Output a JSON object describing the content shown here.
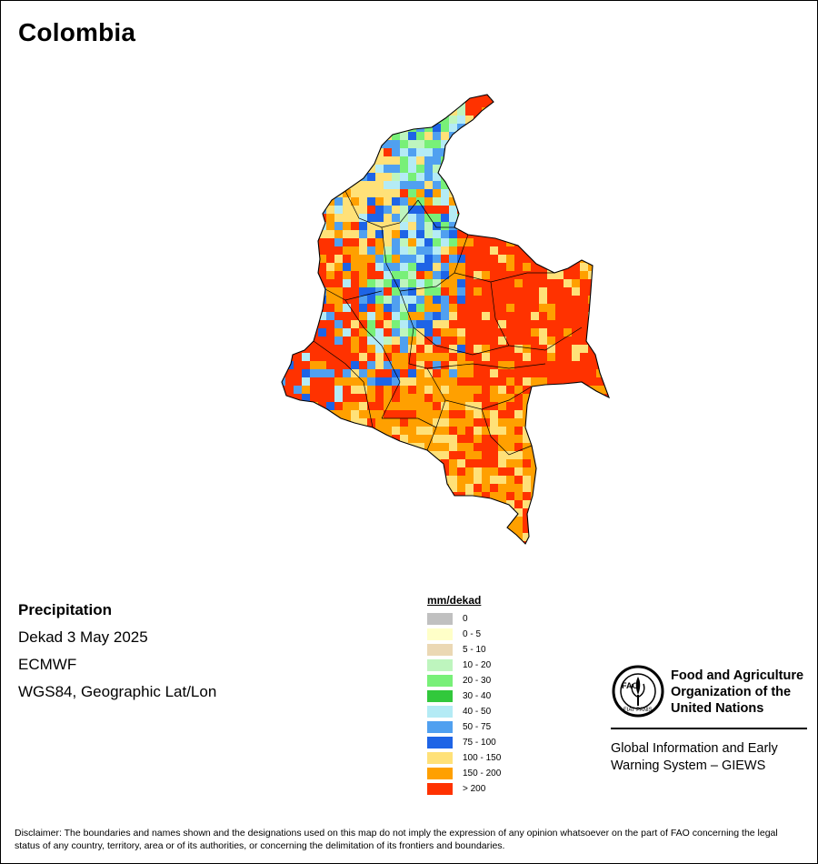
{
  "title": "Colombia",
  "info": {
    "variable": "Precipitation",
    "period": "Dekad 3 May 2025",
    "source": "ECMWF",
    "projection": "WGS84, Geographic Lat/Lon"
  },
  "legend": {
    "title": "mm/dekad",
    "items": [
      {
        "label": "0",
        "color": "#c0c0c0"
      },
      {
        "label": "0 - 5",
        "color": "#ffffc8"
      },
      {
        "label": "5 - 10",
        "color": "#ebd8b4"
      },
      {
        "label": "10 - 20",
        "color": "#bef5be"
      },
      {
        "label": "20 - 30",
        "color": "#78f078"
      },
      {
        "label": "30 - 40",
        "color": "#32c83c"
      },
      {
        "label": "40 - 50",
        "color": "#b4ebf5"
      },
      {
        "label": "50 - 75",
        "color": "#50a0f0"
      },
      {
        "label": "75 - 100",
        "color": "#1e64e6"
      },
      {
        "label": "100 - 150",
        "color": "#ffe178"
      },
      {
        "label": "150 - 200",
        "color": "#ffa000"
      },
      {
        "label": "> 200",
        "color": "#ff3200"
      }
    ]
  },
  "org": {
    "logo_text": "FAO",
    "logo_motto": "FIAT PANIS",
    "name_line1": "Food and Agriculture",
    "name_line2": "Organization of the",
    "name_line3": "United Nations",
    "giews_line1": "Global Information and Early",
    "giews_line2": "Warning System – GIEWS"
  },
  "disclaimer": "Disclaimer: The boundaries and names shown and the designations used on this map do not imply the expression of any opinion whatsoever on the part of FAO concerning the legal status of any country, territory, area or of its authorities, or concerning the delimitation of its frontiers and boundaries."
}
